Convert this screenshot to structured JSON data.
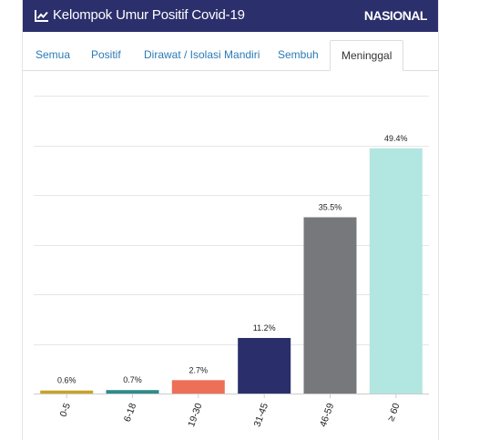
{
  "header": {
    "title": "Kelompok Umur Positif Covid-19",
    "badge": "NASIONAL",
    "icon": "line-chart-icon"
  },
  "tabs": [
    {
      "label": "Semua",
      "active": false
    },
    {
      "label": "Positif",
      "active": false
    },
    {
      "label": "Dirawat / Isolasi Mandiri",
      "active": false
    },
    {
      "label": "Sembuh",
      "active": false
    },
    {
      "label": "Meninggal",
      "active": true
    }
  ],
  "chart_data": {
    "type": "bar",
    "categories": [
      "0-5",
      "6-18",
      "19-30",
      "31-45",
      "46-59",
      "≥ 60"
    ],
    "values": [
      0.6,
      0.7,
      2.7,
      11.2,
      35.5,
      49.4
    ],
    "data_labels": [
      "0.6%",
      "0.7%",
      "2.7%",
      "11.2%",
      "35.5%",
      "49.4%"
    ],
    "colors": [
      "#c9a227",
      "#2e8b8b",
      "#ee6f57",
      "#2a2f6b",
      "#77787c",
      "#b2e6e0"
    ],
    "ylim": [
      0,
      60
    ],
    "grid": true,
    "title": "",
    "xlabel": "",
    "ylabel": ""
  }
}
